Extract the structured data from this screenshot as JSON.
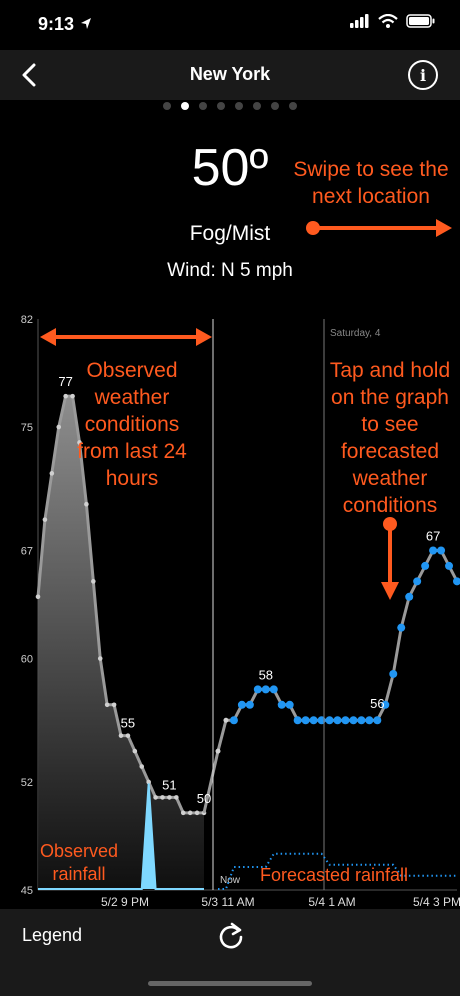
{
  "status": {
    "time": "9:13"
  },
  "nav": {
    "title": "New York",
    "info_label": "i"
  },
  "pages": {
    "count": 8,
    "active": 1
  },
  "current": {
    "temp": "50º",
    "condition": "Fog/Mist",
    "wind": "Wind: N 5 mph"
  },
  "tips": {
    "swipe": "Swipe to see the next location",
    "observed": "Observed weather conditions from last 24 hours",
    "tap": "Tap and hold on the graph to see forecasted weather conditions",
    "observed_rain": "Observed rainfall",
    "forecast_rain": "Forecasted rainfall"
  },
  "bottom": {
    "legend": "Legend"
  },
  "chart_data": {
    "type": "line",
    "y_ticks": [
      82,
      75,
      67,
      60,
      52,
      45
    ],
    "ylim": [
      45,
      82
    ],
    "x_ticks": [
      "5/2 9 PM",
      "5/3 11 AM",
      "5/4 1 AM",
      "5/4 3 PM"
    ],
    "now_label": "Now",
    "day_label": "Saturday, 4",
    "point_labels": [
      "77",
      "55",
      "51",
      "50",
      "58",
      "56",
      "67"
    ],
    "colors": {
      "observed": "#9a9a9a",
      "forecast": "#2196f3",
      "rain": "#7fd8ff",
      "accent": "#ff5a1f"
    },
    "series": [
      {
        "values": [
          64,
          69,
          72,
          75,
          77,
          77,
          74,
          70,
          65,
          60,
          57,
          57,
          55,
          55,
          54,
          53,
          52,
          51,
          51,
          51,
          51,
          50,
          50,
          50,
          50
        ]
      },
      {
        "values": [
          54,
          56,
          56,
          57,
          57,
          58,
          58,
          58,
          57,
          57,
          56,
          56,
          56,
          56,
          56,
          56,
          56,
          56,
          56,
          56,
          56,
          57,
          59,
          62,
          64,
          65,
          66,
          67,
          67,
          66,
          65
        ]
      },
      {
        "values": [
          0,
          0,
          0,
          0,
          0,
          0,
          0,
          0,
          0,
          0,
          0,
          0,
          0,
          0,
          0,
          0,
          4.8,
          0,
          0,
          0,
          0,
          0,
          0,
          0,
          0
        ]
      },
      {
        "values": [
          0,
          0,
          2,
          2,
          2,
          2,
          2,
          3.2,
          3.2,
          3.2,
          3.2,
          3.2,
          3.2,
          3.2,
          2.2,
          2.2,
          2.2,
          2.2,
          2.2,
          2.2,
          2.2,
          2.2,
          2.2,
          1.2,
          1.2,
          1.2,
          1.2,
          1.2,
          1.2,
          1.2,
          1.2
        ]
      }
    ]
  }
}
